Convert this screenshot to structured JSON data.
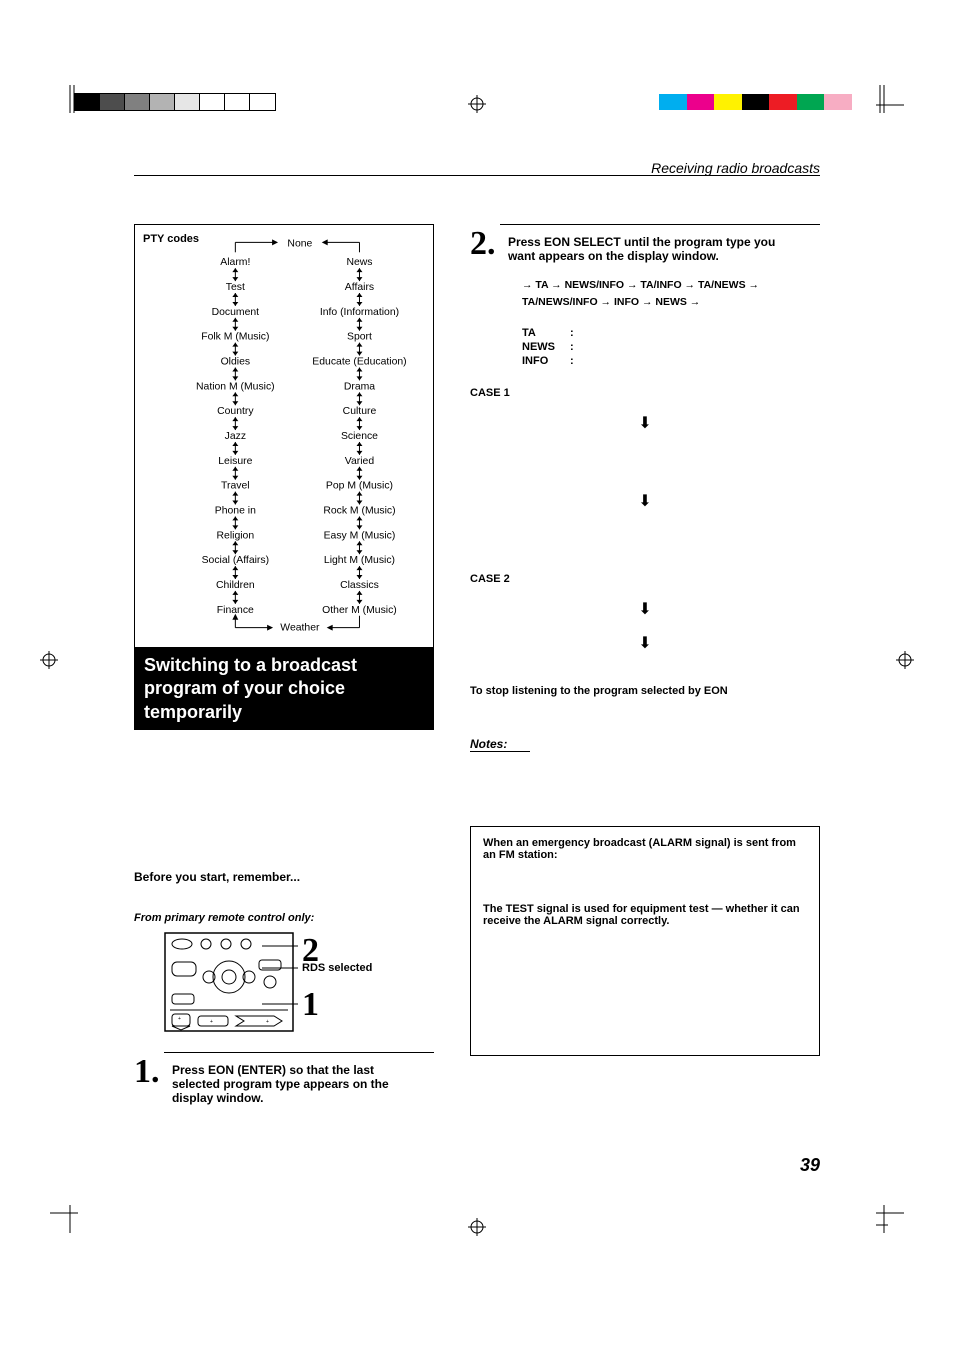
{
  "header": {
    "breadcrumb": "Receiving radio broadcasts"
  },
  "colorbars": {
    "left": [
      "#000000",
      "#4d4d4d",
      "#808080",
      "#b3b3b3",
      "#e6e6e6",
      "#ffffff",
      "#ffffff",
      "#ffffff"
    ],
    "right": [
      "#ffffff",
      "#ffffff",
      "#00aeef",
      "#ec008c",
      "#fff200",
      "#000000",
      "#ed1c24",
      "#00a651",
      "#f7adc3",
      "#ffffff"
    ]
  },
  "pty": {
    "title": "PTY codes",
    "top": "None",
    "left": [
      "Alarm!",
      "Test",
      "Document",
      "Folk M (Music)",
      "Oldies",
      "Nation M (Music)",
      "Country",
      "Jazz",
      "Leisure",
      "Travel",
      "Phone in",
      "Religion",
      "Social (Affairs)",
      "Children",
      "Finance"
    ],
    "right": [
      "News",
      "Affairs",
      "Info (Information)",
      "Sport",
      "Educate (Education)",
      "Drama",
      "Culture",
      "Science",
      "Varied",
      "Pop M (Music)",
      "Rock M (Music)",
      "Easy M (Music)",
      "Light M (Music)",
      "Classics",
      "Other M (Music)"
    ],
    "bottom": "Weather"
  },
  "section": {
    "title": "Switching to a broadcast program of your choice temporarily"
  },
  "setup": {
    "before": "Before you start, remember...",
    "from": "From primary remote control only:",
    "rds_label": "RDS selected",
    "callout_2": "2",
    "callout_1": "1"
  },
  "steps": {
    "s1_num": "1.",
    "s1_text": "Press EON (ENTER) so that the last selected program type appears on the display window.",
    "s2_num": "2.",
    "s2_text": "Press EON SELECT until the program type you want appears on the display window."
  },
  "sequence": {
    "line1": "→ TA → NEWS/INFO → TA/INFO → TA/NEWS →",
    "line2": "TA/NEWS/INFO → INFO → NEWS →"
  },
  "defs": {
    "ta": "TA",
    "news": "NEWS",
    "info": "INFO",
    "colon": ":"
  },
  "cases": {
    "c1": "CASE 1",
    "c2": "CASE 2"
  },
  "stop": "To stop listening to the program selected by EON",
  "notes": "Notes:",
  "alarm": {
    "l1": "When an emergency broadcast (ALARM signal) is sent from an FM station:",
    "l2": "The TEST signal is used for equipment test — whether it can receive the ALARM signal correctly."
  },
  "pagenum": "39"
}
